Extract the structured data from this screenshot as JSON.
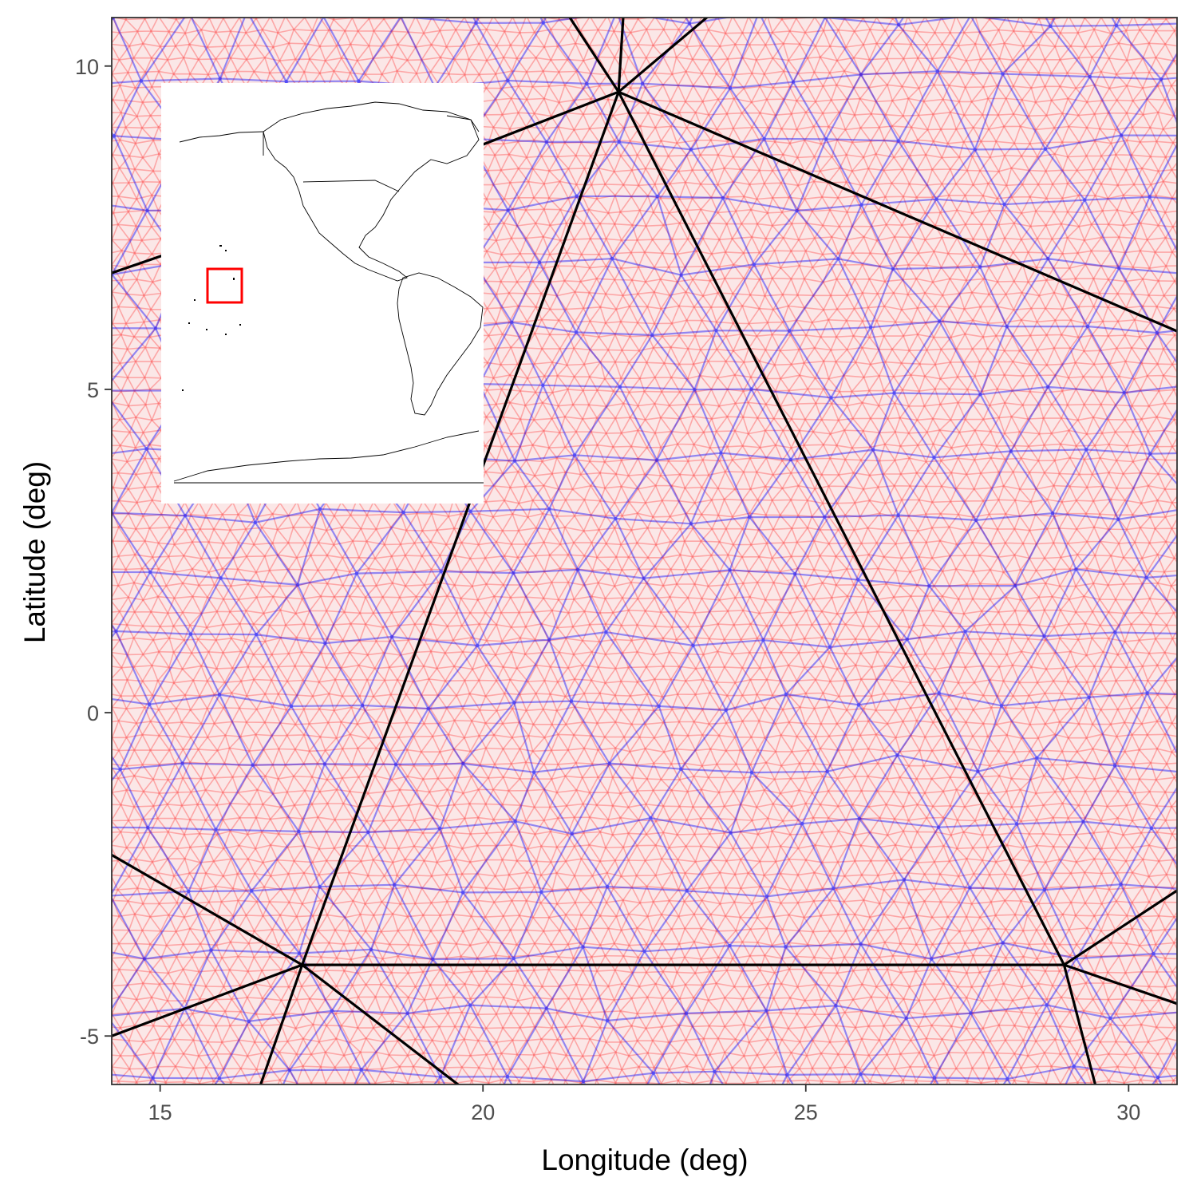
{
  "chart_data": {
    "type": "scatter",
    "title": "",
    "xlabel": "Longitude (deg)",
    "ylabel": "Latitude (deg)",
    "xlim": [
      14.25,
      30.75
    ],
    "ylim": [
      -5.75,
      10.75
    ],
    "x_ticks": [
      15,
      20,
      25,
      30
    ],
    "y_ticks": [
      -5,
      0,
      5,
      10
    ],
    "x_tick_labels": [
      "15",
      "20",
      "25",
      "30"
    ],
    "y_tick_labels": [
      "-5",
      "0",
      "5",
      "10"
    ],
    "grid": false,
    "description_of_layers": [
      "fine mesh (red)",
      "medium mesh (blue)",
      "coarse mesh (black)"
    ],
    "coarse_vertices": [
      {
        "x": 22.1,
        "y": 9.6
      },
      {
        "x": 17.2,
        "y": -3.9
      },
      {
        "x": 29.0,
        "y": -3.9
      }
    ],
    "coarse_edges_to_outside": [
      {
        "from": [
          22.1,
          9.6
        ],
        "to": [
          21.05,
          11.2
        ]
      },
      {
        "from": [
          22.1,
          9.6
        ],
        "to": [
          22.2,
          11.2
        ]
      },
      {
        "from": [
          22.1,
          9.6
        ],
        "to": [
          24.0,
          11.2
        ]
      },
      {
        "from": [
          22.1,
          9.6
        ],
        "to": [
          19.0,
          8.4
        ]
      },
      {
        "from": [
          22.1,
          9.6
        ],
        "to": [
          30.75,
          5.9
        ]
      },
      {
        "from": [
          17.2,
          -3.9
        ],
        "to": [
          14.25,
          -2.2
        ]
      },
      {
        "from": [
          17.2,
          -3.9
        ],
        "to": [
          14.25,
          -5.0
        ]
      },
      {
        "from": [
          17.2,
          -3.9
        ],
        "to": [
          16.4,
          -6.2
        ]
      },
      {
        "from": [
          17.2,
          -3.9
        ],
        "to": [
          20.2,
          -6.2
        ]
      },
      {
        "from": [
          29.0,
          -3.9
        ],
        "to": [
          30.75,
          -2.75
        ]
      },
      {
        "from": [
          29.0,
          -3.9
        ],
        "to": [
          30.75,
          -4.5
        ]
      },
      {
        "from": [
          29.0,
          -3.9
        ],
        "to": [
          29.6,
          -6.2
        ]
      },
      {
        "from": [
          14.25,
          6.8
        ],
        "to": [
          16.0,
          7.4
        ]
      }
    ],
    "inset": {
      "type": "map",
      "content": "world map centered on the Americas with Pacific islands",
      "highlight_box": {
        "color": "#ff0000"
      }
    },
    "colors": {
      "fine_mesh": "#ff0000",
      "medium_mesh": "#0000ff",
      "coarse_mesh": "#000000",
      "panel_border": "#333333"
    }
  }
}
